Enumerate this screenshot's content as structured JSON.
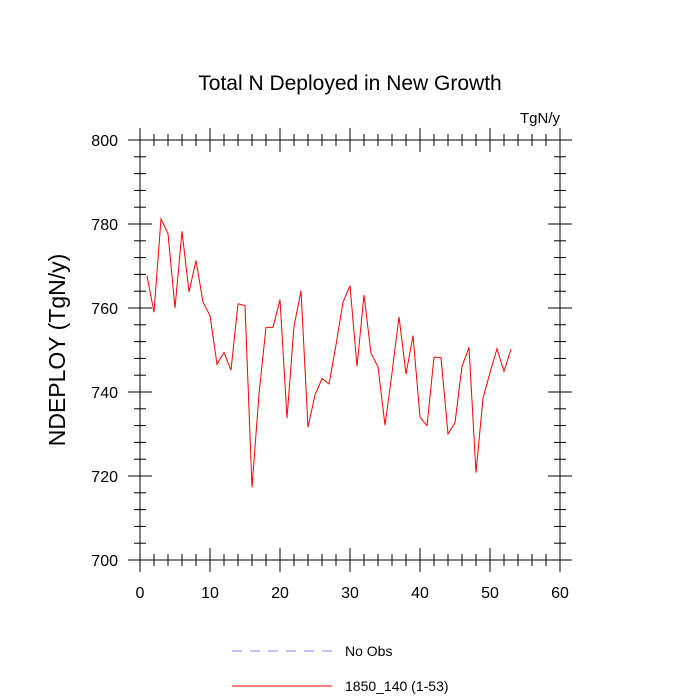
{
  "chart_data": {
    "type": "line",
    "title": "Total N Deployed in New Growth",
    "units": "TgN/y",
    "ylabel": "NDEPLOY  (TgN/y)",
    "xlabel": "",
    "xlim": [
      0,
      60
    ],
    "ylim": [
      700,
      800
    ],
    "xticks": [
      0,
      10,
      20,
      30,
      40,
      50,
      60
    ],
    "yticks": [
      700,
      720,
      740,
      760,
      780,
      800
    ],
    "grid": false,
    "legend_position": "bottom-center",
    "series": [
      {
        "name": "No Obs",
        "color": "#8080ff",
        "dash": "dashed",
        "x": [],
        "y": []
      },
      {
        "name": "1850_140 (1-53)",
        "color": "#ff0000",
        "dash": "solid",
        "x": [
          1,
          2,
          3,
          4,
          5,
          6,
          7,
          8,
          9,
          10,
          11,
          12,
          13,
          14,
          15,
          16,
          17,
          18,
          19,
          20,
          21,
          22,
          23,
          24,
          25,
          26,
          27,
          28,
          29,
          30,
          31,
          32,
          33,
          34,
          35,
          36,
          37,
          38,
          39,
          40,
          41,
          42,
          43,
          44,
          45,
          46,
          47,
          48,
          49,
          50,
          51,
          52,
          53
        ],
        "y": [
          767.7,
          759.0,
          781.2,
          777.7,
          760.0,
          778.3,
          763.8,
          771.3,
          761.4,
          758.2,
          746.6,
          749.4,
          745.2,
          761.0,
          760.6,
          717.3,
          739.5,
          755.4,
          755.4,
          762.0,
          733.8,
          755.6,
          764.1,
          731.6,
          739.3,
          743.2,
          741.9,
          751.2,
          761.4,
          765.3,
          746.1,
          763.1,
          749.2,
          746.0,
          732.1,
          744.5,
          757.9,
          744.3,
          753.4,
          734.0,
          732.0,
          748.3,
          748.2,
          730.0,
          732.7,
          746.1,
          750.6,
          720.8,
          738.5,
          744.6,
          750.3,
          744.9,
          750.2
        ]
      }
    ]
  }
}
